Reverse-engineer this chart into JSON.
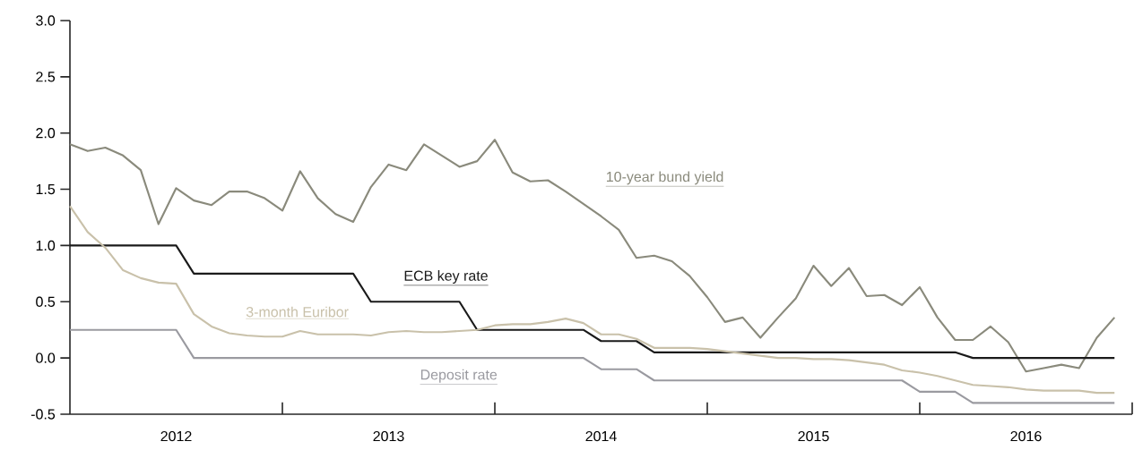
{
  "chart_data": {
    "type": "line",
    "x": [
      "2012-01",
      "2012-02",
      "2012-03",
      "2012-04",
      "2012-05",
      "2012-06",
      "2012-07",
      "2012-08",
      "2012-09",
      "2012-10",
      "2012-11",
      "2012-12",
      "2013-01",
      "2013-02",
      "2013-03",
      "2013-04",
      "2013-05",
      "2013-06",
      "2013-07",
      "2013-08",
      "2013-09",
      "2013-10",
      "2013-11",
      "2013-12",
      "2014-01",
      "2014-02",
      "2014-03",
      "2014-04",
      "2014-05",
      "2014-06",
      "2014-07",
      "2014-08",
      "2014-09",
      "2014-10",
      "2014-11",
      "2014-12",
      "2015-01",
      "2015-02",
      "2015-03",
      "2015-04",
      "2015-05",
      "2015-06",
      "2015-07",
      "2015-08",
      "2015-09",
      "2015-10",
      "2015-11",
      "2015-12",
      "2016-01",
      "2016-02",
      "2016-03",
      "2016-04",
      "2016-05",
      "2016-06",
      "2016-07",
      "2016-08",
      "2016-09",
      "2016-10",
      "2016-11",
      "2016-12"
    ],
    "series": [
      {
        "name": "10-year bund yield",
        "color": "#8a8a7c",
        "values": [
          1.9,
          1.84,
          1.87,
          1.8,
          1.67,
          1.19,
          1.51,
          1.4,
          1.36,
          1.48,
          1.48,
          1.42,
          1.31,
          1.66,
          1.42,
          1.28,
          1.21,
          1.52,
          1.72,
          1.67,
          1.9,
          1.8,
          1.7,
          1.75,
          1.94,
          1.65,
          1.57,
          1.58,
          1.48,
          1.37,
          1.26,
          1.14,
          0.89,
          0.91,
          0.86,
          0.73,
          0.54,
          0.32,
          0.36,
          0.18,
          0.36,
          0.53,
          0.82,
          0.64,
          0.8,
          0.55,
          0.56,
          0.47,
          0.63,
          0.36,
          0.16,
          0.16,
          0.28,
          0.14,
          -0.12,
          -0.09,
          -0.06,
          -0.09,
          0.18,
          0.36
        ]
      },
      {
        "name": "ECB key rate",
        "color": "#1a1a1a",
        "values": [
          1.0,
          1.0,
          1.0,
          1.0,
          1.0,
          1.0,
          1.0,
          0.75,
          0.75,
          0.75,
          0.75,
          0.75,
          0.75,
          0.75,
          0.75,
          0.75,
          0.75,
          0.5,
          0.5,
          0.5,
          0.5,
          0.5,
          0.5,
          0.25,
          0.25,
          0.25,
          0.25,
          0.25,
          0.25,
          0.25,
          0.15,
          0.15,
          0.15,
          0.05,
          0.05,
          0.05,
          0.05,
          0.05,
          0.05,
          0.05,
          0.05,
          0.05,
          0.05,
          0.05,
          0.05,
          0.05,
          0.05,
          0.05,
          0.05,
          0.05,
          0.05,
          0,
          0,
          0,
          0,
          0,
          0,
          0,
          0,
          0
        ]
      },
      {
        "name": "3-month Euribor",
        "color": "#c9c1aa",
        "values": [
          1.35,
          1.12,
          0.98,
          0.78,
          0.71,
          0.67,
          0.66,
          0.39,
          0.28,
          0.22,
          0.2,
          0.19,
          0.19,
          0.24,
          0.21,
          0.21,
          0.21,
          0.2,
          0.23,
          0.24,
          0.23,
          0.23,
          0.24,
          0.25,
          0.29,
          0.3,
          0.3,
          0.32,
          0.35,
          0.31,
          0.21,
          0.21,
          0.17,
          0.09,
          0.09,
          0.09,
          0.08,
          0.06,
          0.04,
          0.02,
          0.0,
          0.0,
          -0.01,
          -0.01,
          -0.02,
          -0.04,
          -0.06,
          -0.11,
          -0.13,
          -0.16,
          -0.2,
          -0.24,
          -0.25,
          -0.26,
          -0.28,
          -0.29,
          -0.29,
          -0.29,
          -0.31,
          -0.31
        ]
      },
      {
        "name": "Deposit rate",
        "color": "#9a9aa0",
        "values": [
          0.25,
          0.25,
          0.25,
          0.25,
          0.25,
          0.25,
          0.25,
          0,
          0,
          0,
          0,
          0,
          0,
          0,
          0,
          0,
          0,
          0,
          0,
          0,
          0,
          0,
          0,
          0,
          0,
          0,
          0,
          0,
          0,
          0,
          -0.1,
          -0.1,
          -0.1,
          -0.2,
          -0.2,
          -0.2,
          -0.2,
          -0.2,
          -0.2,
          -0.2,
          -0.2,
          -0.2,
          -0.2,
          -0.2,
          -0.2,
          -0.2,
          -0.2,
          -0.2,
          -0.3,
          -0.3,
          -0.3,
          -0.4,
          -0.4,
          -0.4,
          -0.4,
          -0.4,
          -0.4,
          -0.4,
          -0.4,
          -0.4
        ]
      }
    ],
    "xlim": [
      "2012-01",
      "2017-01"
    ],
    "xticks": [
      {
        "value": "2012-07",
        "label": "2012"
      },
      {
        "value": "2013-01",
        "label": null
      },
      {
        "value": "2013-07",
        "label": "2013"
      },
      {
        "value": "2014-01",
        "label": null
      },
      {
        "value": "2014-07",
        "label": "2014"
      },
      {
        "value": "2015-01",
        "label": null
      },
      {
        "value": "2015-07",
        "label": "2015"
      },
      {
        "value": "2016-01",
        "label": null
      },
      {
        "value": "2016-07",
        "label": "2016"
      },
      {
        "value": "2017-01",
        "label": null
      }
    ],
    "ylim": [
      -0.5,
      3.0
    ],
    "yticks": [
      {
        "value": -0.5,
        "label": "-0.5"
      },
      {
        "value": 0,
        "label": "0.0"
      },
      {
        "value": 0.5,
        "label": "0.5"
      },
      {
        "value": 1,
        "label": "1.0"
      },
      {
        "value": 1.5,
        "label": "1.5"
      },
      {
        "value": 2,
        "label": "2.0"
      },
      {
        "value": 2.5,
        "label": "2.5"
      },
      {
        "value": 3,
        "label": "3.0"
      }
    ]
  }
}
